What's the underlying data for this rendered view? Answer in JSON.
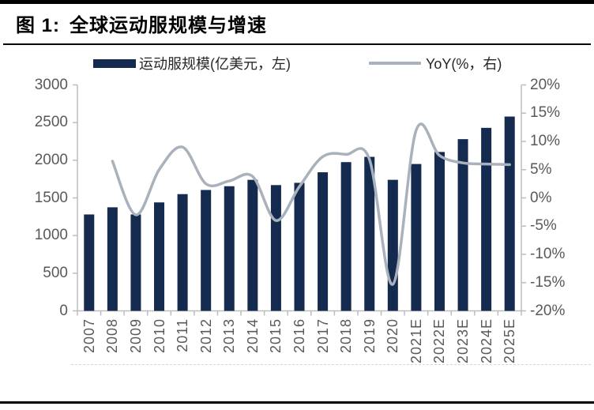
{
  "figure": {
    "label": "图 1:",
    "title": "全球运动服规模与增速"
  },
  "legend": {
    "size": {
      "label": "运动服规模(亿美元，左)"
    },
    "yoy": {
      "label": "YoY(%，右)"
    }
  },
  "colors": {
    "bar": "#142a4e",
    "line": "#a9b2bc",
    "axis": "#bdbdbd",
    "tick_label": "#595959",
    "rule": "#000000"
  },
  "chart_data": {
    "type": "bar",
    "combo": "bar+line",
    "title": "全球运动服规模与增速",
    "categories": [
      "2007",
      "2008",
      "2009",
      "2010",
      "2011",
      "2012",
      "2013",
      "2014",
      "2015",
      "2016",
      "2017",
      "2018",
      "2019",
      "2020",
      "2021E",
      "2022E",
      "2023E",
      "2024E",
      "2025E"
    ],
    "series": [
      {
        "name": "运动服规模(亿美元，左)",
        "type": "bar",
        "axis": "left",
        "values": [
          1280,
          1375,
          1280,
          1440,
          1550,
          1605,
          1655,
          1740,
          1670,
          1700,
          1840,
          1975,
          2045,
          1740,
          1950,
          2110,
          2280,
          2430,
          2580
        ]
      },
      {
        "name": "YoY(%，右)",
        "type": "line",
        "axis": "right",
        "values": [
          null,
          6.5,
          -3.0,
          5.0,
          9.0,
          2.5,
          3.0,
          3.8,
          -4.0,
          2.0,
          7.3,
          7.7,
          6.8,
          -15.3,
          12.0,
          7.5,
          6.2,
          6.0,
          5.9
        ]
      }
    ],
    "left_axis": {
      "min": 0,
      "max": 3000,
      "step": 500,
      "tick_labels": [
        "3000",
        "2500",
        "2000",
        "1500",
        "1000",
        "500",
        "0"
      ]
    },
    "right_axis": {
      "min": -20,
      "max": 20,
      "step": 5,
      "tick_labels": [
        "20%",
        "15%",
        "10%",
        "5%",
        "0%",
        "-5%",
        "-10%",
        "-15%",
        "-20%"
      ]
    },
    "grid": false,
    "legend_position": "top"
  }
}
